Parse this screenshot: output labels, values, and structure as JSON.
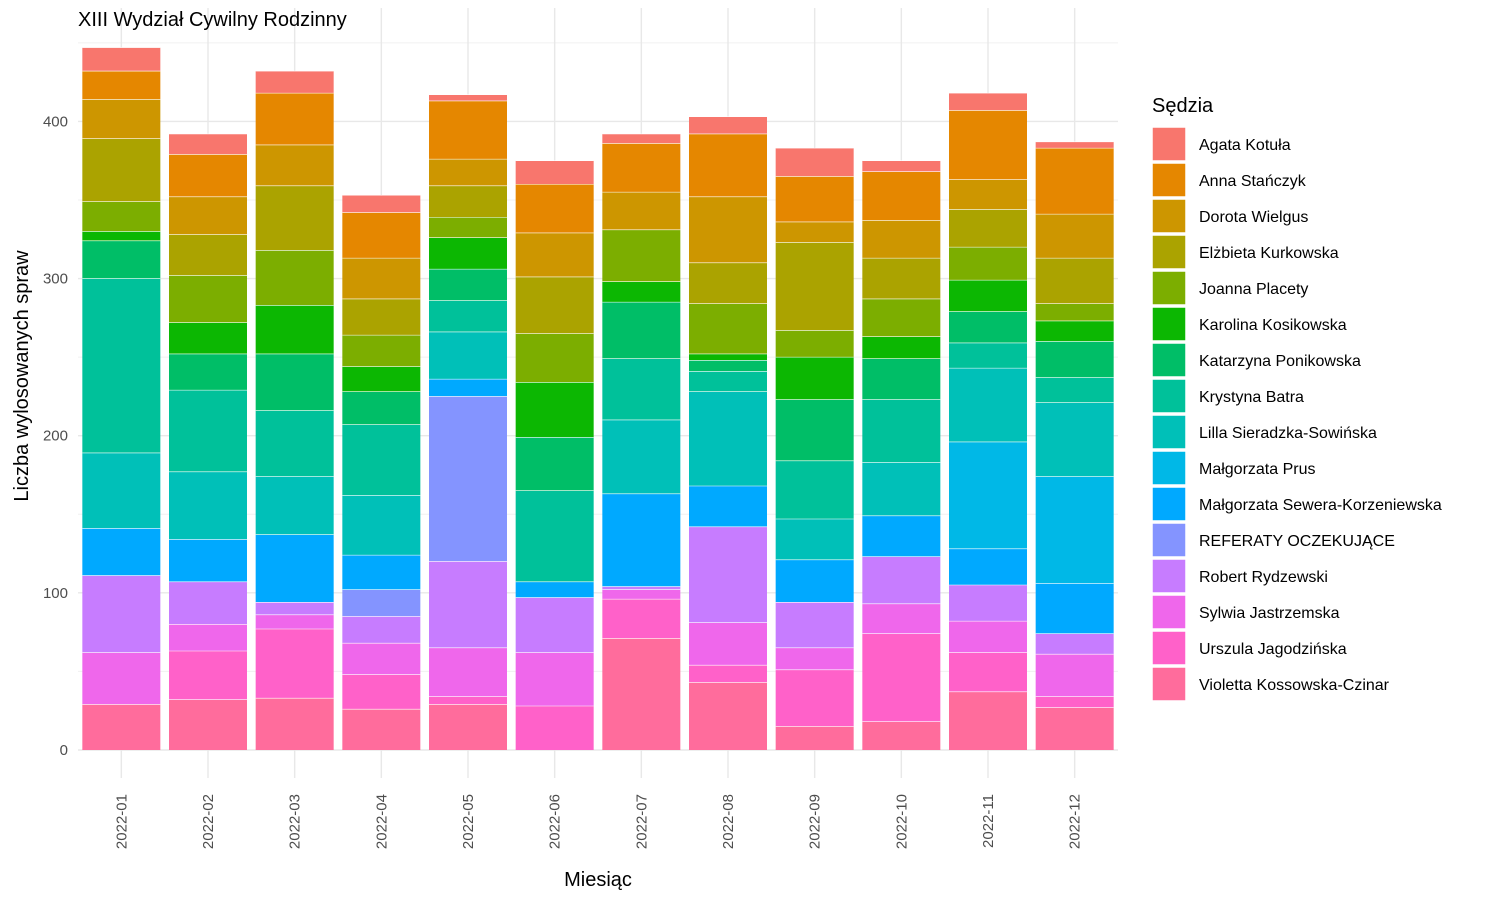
{
  "chart_data": {
    "type": "bar",
    "stacked": true,
    "title": "XIII Wydział Cywilny Rodzinny",
    "xlabel": "Miesiąc",
    "ylabel": "Liczba wylosowanych spraw",
    "ylim": [
      0,
      450
    ],
    "yticks": [
      0,
      100,
      200,
      300,
      400
    ],
    "grid": true,
    "legend_title": "Sędzia",
    "legend_position": "right",
    "categories": [
      "2022-01",
      "2022-02",
      "2022-03",
      "2022-04",
      "2022-05",
      "2022-06",
      "2022-07",
      "2022-08",
      "2022-09",
      "2022-10",
      "2022-11",
      "2022-12"
    ],
    "series": [
      {
        "name": "Violetta Kossowska-Czinar",
        "color": "#FF6C9C",
        "values": [
          29,
          32,
          33,
          26,
          29,
          0,
          71,
          43,
          15,
          18,
          37,
          27
        ]
      },
      {
        "name": "Urszula Jagodzińska",
        "color": "#FF61C9",
        "values": [
          0,
          31,
          44,
          22,
          5,
          28,
          25,
          11,
          36,
          56,
          25,
          7
        ]
      },
      {
        "name": "Sylwia Jastrzemska",
        "color": "#EF67EB",
        "values": [
          33,
          17,
          9,
          20,
          31,
          34,
          6,
          27,
          14,
          19,
          20,
          27
        ]
      },
      {
        "name": "Robert Rydzewski",
        "color": "#C77CFF",
        "values": [
          49,
          27,
          8,
          17,
          55,
          35,
          2,
          61,
          29,
          30,
          23,
          13
        ]
      },
      {
        "name": "REFERATY OCZEKUJĄCE",
        "color": "#8494FF",
        "values": [
          0,
          0,
          0,
          17,
          105,
          0,
          0,
          0,
          0,
          0,
          0,
          0
        ]
      },
      {
        "name": "Małgorzata Sewera-Korzeniewska",
        "color": "#00A9FF",
        "values": [
          30,
          27,
          43,
          22,
          11,
          10,
          59,
          26,
          27,
          26,
          23,
          32
        ]
      },
      {
        "name": "Małgorzata Prus",
        "color": "#00B8E7",
        "values": [
          0,
          0,
          0,
          0,
          0,
          0,
          0,
          0,
          0,
          0,
          68,
          68
        ]
      },
      {
        "name": "Lilla Sieradzka-Sowińska",
        "color": "#00C0B8",
        "values": [
          48,
          43,
          37,
          38,
          30,
          0,
          47,
          60,
          26,
          34,
          47,
          47
        ]
      },
      {
        "name": "Krystyna Batra",
        "color": "#00C19A",
        "values": [
          111,
          52,
          42,
          45,
          20,
          58,
          39,
          13,
          37,
          40,
          16,
          16
        ]
      },
      {
        "name": "Katarzyna Ponikowska",
        "color": "#00BE67",
        "values": [
          24,
          23,
          36,
          21,
          20,
          34,
          36,
          7,
          39,
          26,
          20,
          23
        ]
      },
      {
        "name": "Karolina Kosikowska",
        "color": "#0CB702",
        "values": [
          6,
          20,
          31,
          16,
          20,
          35,
          13,
          4,
          27,
          14,
          20,
          13
        ]
      },
      {
        "name": "Joanna Placety",
        "color": "#7CAE00",
        "values": [
          19,
          30,
          35,
          20,
          13,
          31,
          33,
          32,
          17,
          24,
          21,
          11
        ]
      },
      {
        "name": "Elżbieta Kurkowska",
        "color": "#ABA300",
        "values": [
          40,
          26,
          41,
          23,
          20,
          36,
          0,
          26,
          56,
          26,
          24,
          29
        ]
      },
      {
        "name": "Dorota Wielgus",
        "color": "#CD9600",
        "values": [
          25,
          24,
          26,
          26,
          17,
          28,
          24,
          42,
          13,
          24,
          19,
          28
        ]
      },
      {
        "name": "Anna Stańczyk",
        "color": "#E58700",
        "values": [
          18,
          27,
          33,
          29,
          37,
          31,
          31,
          40,
          29,
          31,
          44,
          42
        ]
      },
      {
        "name": "Agata Kotuła",
        "color": "#F8766D",
        "values": [
          15,
          13,
          14,
          11,
          4,
          15,
          6,
          11,
          18,
          7,
          11,
          4
        ]
      }
    ]
  }
}
